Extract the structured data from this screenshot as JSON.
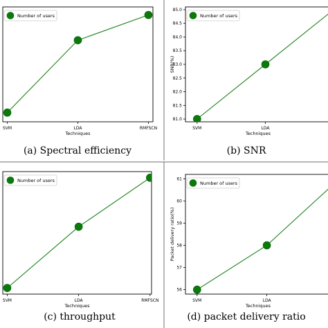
{
  "chart_data": [
    {
      "type": "line",
      "caption": "(a) Spectral efficiency",
      "xlabel": "Techniques",
      "ylabel": "",
      "categories": [
        "SVM",
        "LDA",
        "RMFSCN"
      ],
      "yticks": [],
      "ylim": [
        0,
        1
      ],
      "series": [
        {
          "name": "Number of users",
          "values": [
            0.08,
            0.71,
            0.93
          ]
        }
      ],
      "legend": "top-left",
      "grid": false,
      "color": "#0a7a0a"
    },
    {
      "type": "line",
      "caption": "(b) SNR",
      "xlabel": "Techniques",
      "ylabel": "SNR(%)",
      "categories": [
        "SVM",
        "LDA",
        ""
      ],
      "yticks": [
        "81.0",
        "81.5",
        "82.0",
        "82.5",
        "83.0",
        "83.5",
        "84.0",
        "84.5",
        "85.0"
      ],
      "ylim": [
        80.9,
        85.1
      ],
      "series": [
        {
          "name": "Number of users",
          "values": [
            81.0,
            83.0,
            85.0
          ]
        }
      ],
      "legend": "top-left",
      "grid": false,
      "color": "#0a7a0a"
    },
    {
      "type": "line",
      "caption": "(c)  throughput",
      "xlabel": "Techniques",
      "ylabel": "",
      "categories": [
        "SVM",
        "LDA",
        "RMFSCN"
      ],
      "yticks": [],
      "ylim": [
        0,
        1
      ],
      "series": [
        {
          "name": "Number of users",
          "values": [
            0.05,
            0.55,
            0.95
          ]
        }
      ],
      "legend": "top-left",
      "grid": false,
      "color": "#0a7a0a"
    },
    {
      "type": "line",
      "caption": "(d) packet delivery ratio",
      "xlabel": "Techniques",
      "ylabel": "Packet delivery ratio(%)",
      "categories": [
        "SVM",
        "LDA",
        ""
      ],
      "yticks": [
        "56",
        "57",
        "58",
        "59",
        "60",
        "61"
      ],
      "ylim": [
        55.8,
        61.2
      ],
      "series": [
        {
          "name": "Number of users",
          "values": [
            56,
            58,
            61
          ]
        }
      ],
      "legend": "top-left",
      "grid": false,
      "color": "#0a7a0a"
    }
  ]
}
